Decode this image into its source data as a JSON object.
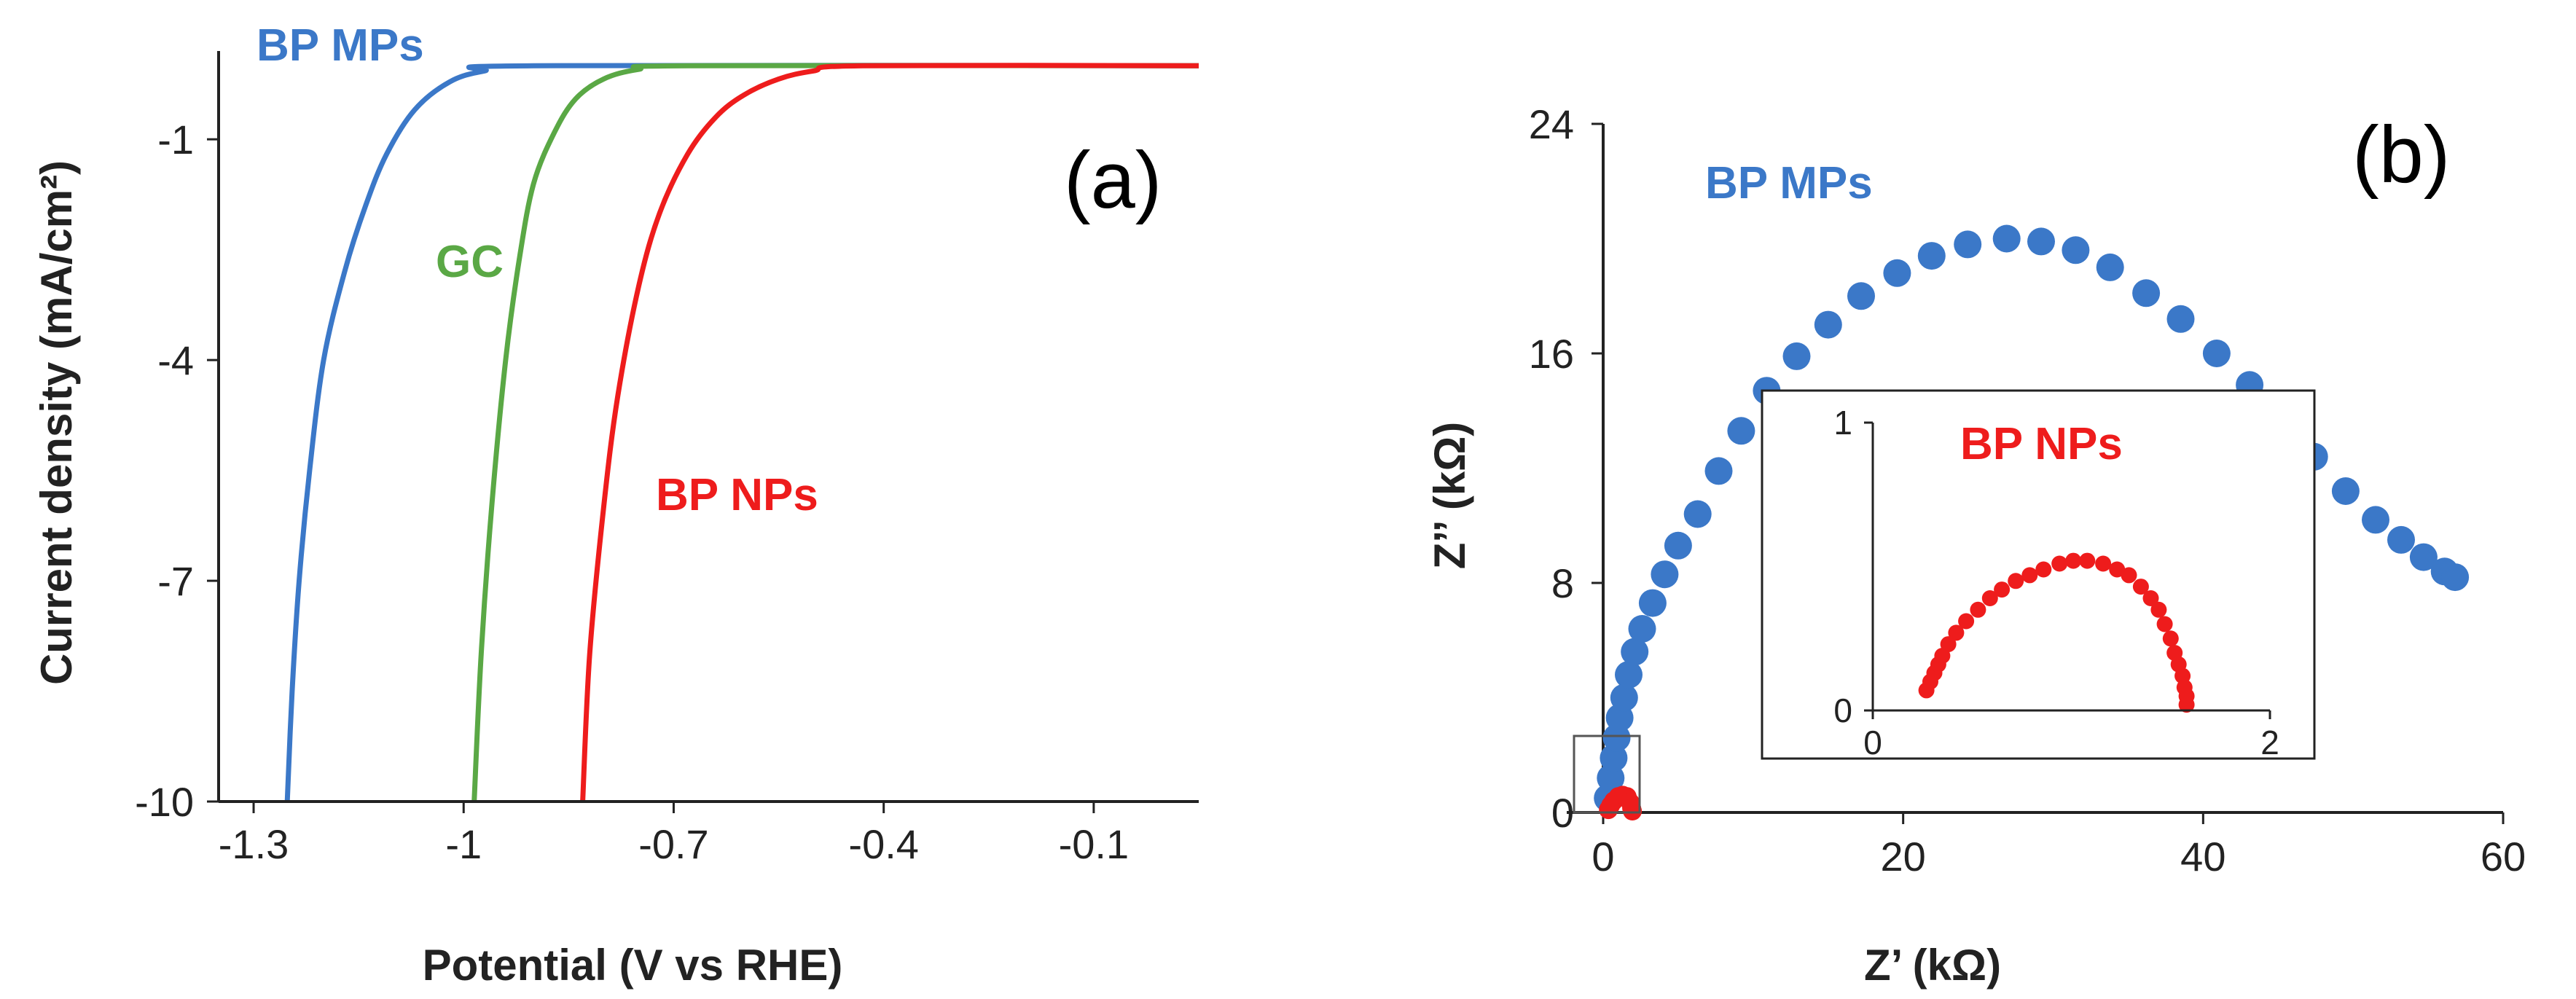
{
  "chart_data": [
    {
      "type": "line",
      "panel_label": "(a)",
      "xlabel": "Potential (V vs RHE)",
      "ylabel": "Current density (mA/cm²)",
      "xlim": [
        -1.35,
        0.05
      ],
      "ylim": [
        -10,
        0.2
      ],
      "x_ticks": [
        "-1.3",
        "-1",
        "-0.7",
        "-0.4",
        "-0.1"
      ],
      "x_tick_values": [
        -1.3,
        -1.0,
        -0.7,
        -0.4,
        -0.1
      ],
      "y_ticks": [
        "-1",
        "-4",
        "-7",
        "-10"
      ],
      "y_tick_values": [
        -1,
        -4,
        -7,
        -10
      ],
      "series": [
        {
          "name": "BP MPs",
          "color": "#3b78c8",
          "points": [
            [
              -1.252,
              -10
            ],
            [
              -1.245,
              -8.5
            ],
            [
              -1.235,
              -7
            ],
            [
              -1.22,
              -5.5
            ],
            [
              -1.2,
              -4
            ],
            [
              -1.17,
              -2.8
            ],
            [
              -1.14,
              -1.9
            ],
            [
              -1.11,
              -1.2
            ],
            [
              -1.07,
              -0.6
            ],
            [
              -1.02,
              -0.22
            ],
            [
              -0.97,
              -0.07
            ],
            [
              -0.9,
              0
            ],
            [
              0.05,
              0
            ]
          ]
        },
        {
          "name": "GC",
          "color": "#5aa845",
          "points": [
            [
              -0.985,
              -10
            ],
            [
              -0.975,
              -8
            ],
            [
              -0.96,
              -6
            ],
            [
              -0.94,
              -4
            ],
            [
              -0.92,
              -2.6
            ],
            [
              -0.9,
              -1.6
            ],
            [
              -0.87,
              -0.9
            ],
            [
              -0.84,
              -0.45
            ],
            [
              -0.8,
              -0.18
            ],
            [
              -0.75,
              -0.05
            ],
            [
              -0.68,
              0
            ],
            [
              0.05,
              0
            ]
          ]
        },
        {
          "name": "BP NPs",
          "color": "#ee1c1c",
          "points": [
            [
              -0.83,
              -10
            ],
            [
              -0.82,
              -8
            ],
            [
              -0.8,
              -6
            ],
            [
              -0.78,
              -4.5
            ],
            [
              -0.75,
              -3
            ],
            [
              -0.72,
              -2
            ],
            [
              -0.68,
              -1.2
            ],
            [
              -0.64,
              -0.7
            ],
            [
              -0.6,
              -0.4
            ],
            [
              -0.55,
              -0.18
            ],
            [
              -0.5,
              -0.07
            ],
            [
              -0.43,
              0
            ],
            [
              0.05,
              0
            ]
          ]
        }
      ]
    },
    {
      "type": "scatter",
      "panel_label": "(b)",
      "xlabel": "Z’ (kΩ)",
      "ylabel": "Z’’ (kΩ)",
      "xlim": [
        -2,
        60
      ],
      "ylim": [
        -0.6,
        24
      ],
      "x_ticks": [
        "0",
        "20",
        "40",
        "60"
      ],
      "x_tick_values": [
        0,
        20,
        40,
        60
      ],
      "y_ticks": [
        "0",
        "8",
        "16",
        "24"
      ],
      "y_tick_values": [
        0,
        8,
        16,
        24
      ],
      "series": [
        {
          "name": "BP MPs",
          "color": "#3b78c8",
          "points": [
            [
              0.3,
              0.5
            ],
            [
              0.5,
              1.2
            ],
            [
              0.7,
              1.9
            ],
            [
              0.9,
              2.6
            ],
            [
              1.1,
              3.3
            ],
            [
              1.4,
              4.0
            ],
            [
              1.7,
              4.8
            ],
            [
              2.1,
              5.6
            ],
            [
              2.6,
              6.4
            ],
            [
              3.3,
              7.3
            ],
            [
              4.1,
              8.3
            ],
            [
              5.0,
              9.3
            ],
            [
              6.3,
              10.4
            ],
            [
              7.7,
              11.9
            ],
            [
              9.2,
              13.3
            ],
            [
              10.9,
              14.7
            ],
            [
              12.9,
              15.9
            ],
            [
              15.0,
              17.0
            ],
            [
              17.2,
              18.0
            ],
            [
              19.6,
              18.8
            ],
            [
              21.9,
              19.4
            ],
            [
              24.3,
              19.8
            ],
            [
              26.9,
              20.0
            ],
            [
              29.2,
              19.9
            ],
            [
              31.5,
              19.6
            ],
            [
              33.8,
              19.0
            ],
            [
              36.2,
              18.1
            ],
            [
              38.5,
              17.2
            ],
            [
              40.9,
              16.0
            ],
            [
              43.1,
              14.9
            ],
            [
              45.2,
              13.7
            ],
            [
              47.4,
              12.4
            ],
            [
              49.5,
              11.2
            ],
            [
              51.5,
              10.2
            ],
            [
              53.2,
              9.5
            ],
            [
              54.7,
              8.9
            ],
            [
              56.1,
              8.4
            ],
            [
              56.8,
              8.2
            ]
          ]
        },
        {
          "name": "BP NPs",
          "color": "#ee1c1c",
          "points": [
            [
              0.35,
              0.1
            ],
            [
              0.5,
              0.25
            ],
            [
              0.7,
              0.4
            ],
            [
              1.0,
              0.55
            ],
            [
              1.3,
              0.6
            ],
            [
              1.6,
              0.55
            ],
            [
              1.8,
              0.35
            ],
            [
              1.9,
              0.15
            ],
            [
              1.95,
              0.05
            ]
          ]
        }
      ],
      "inset": {
        "series_name": "BP NPs",
        "color": "#ee1c1c",
        "xlim": [
          0,
          2
        ],
        "ylim": [
          0,
          1
        ],
        "x_ticks": [
          "0",
          "2"
        ],
        "x_tick_values": [
          0,
          2
        ],
        "y_ticks": [
          "0",
          "1"
        ],
        "y_tick_values": [
          0,
          1
        ],
        "points": [
          [
            0.27,
            0.07
          ],
          [
            0.29,
            0.1
          ],
          [
            0.31,
            0.13
          ],
          [
            0.33,
            0.16
          ],
          [
            0.35,
            0.19
          ],
          [
            0.38,
            0.23
          ],
          [
            0.42,
            0.27
          ],
          [
            0.47,
            0.31
          ],
          [
            0.53,
            0.35
          ],
          [
            0.59,
            0.39
          ],
          [
            0.65,
            0.42
          ],
          [
            0.72,
            0.45
          ],
          [
            0.79,
            0.47
          ],
          [
            0.86,
            0.49
          ],
          [
            0.94,
            0.51
          ],
          [
            1.01,
            0.52
          ],
          [
            1.08,
            0.52
          ],
          [
            1.16,
            0.51
          ],
          [
            1.23,
            0.49
          ],
          [
            1.29,
            0.47
          ],
          [
            1.35,
            0.43
          ],
          [
            1.4,
            0.39
          ],
          [
            1.44,
            0.35
          ],
          [
            1.47,
            0.3
          ],
          [
            1.5,
            0.25
          ],
          [
            1.52,
            0.2
          ],
          [
            1.54,
            0.16
          ],
          [
            1.56,
            0.12
          ],
          [
            1.57,
            0.08
          ],
          [
            1.58,
            0.05
          ],
          [
            1.58,
            0.02
          ]
        ]
      }
    }
  ]
}
